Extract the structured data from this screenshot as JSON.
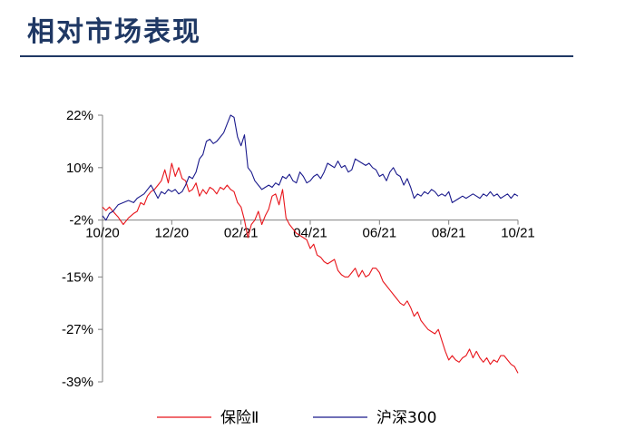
{
  "header": {
    "title": "相对市场表现"
  },
  "colors": {
    "title": "#1f3864",
    "rule": "#1f3864",
    "series_insurance": "#e8151b",
    "series_hs300": "#1a1a8c",
    "axis": "#808080"
  },
  "chart_data": {
    "type": "line",
    "title": "",
    "xlabel": "",
    "ylabel": "",
    "x_ticks": [
      "10/20",
      "12/20",
      "02/21",
      "04/21",
      "06/21",
      "08/21",
      "10/21"
    ],
    "y_ticks": [
      "22%",
      "10%",
      "-2%",
      "-15%",
      "-27%",
      "-39%"
    ],
    "y_tick_values": [
      22,
      10,
      -2,
      -15,
      -27,
      -39
    ],
    "ylim": [
      -39,
      22
    ],
    "xlim": [
      0,
      12
    ],
    "grid": false,
    "legend_position": "bottom",
    "series": [
      {
        "name": "保险Ⅱ",
        "color": "#e8151b",
        "x": [
          0,
          0.1,
          0.2,
          0.3,
          0.45,
          0.6,
          0.75,
          0.9,
          1.0,
          1.1,
          1.2,
          1.3,
          1.4,
          1.5,
          1.6,
          1.7,
          1.8,
          1.9,
          2.0,
          2.1,
          2.2,
          2.3,
          2.4,
          2.5,
          2.6,
          2.7,
          2.8,
          2.9,
          3.0,
          3.1,
          3.2,
          3.3,
          3.4,
          3.5,
          3.6,
          3.7,
          3.8,
          3.9,
          4.0,
          4.1,
          4.2,
          4.3,
          4.4,
          4.5,
          4.6,
          4.7,
          4.8,
          4.9,
          5.0,
          5.1,
          5.2,
          5.3,
          5.4,
          5.5,
          5.6,
          5.7,
          5.8,
          5.9,
          6.0,
          6.1,
          6.2,
          6.3,
          6.4,
          6.5,
          6.6,
          6.7,
          6.8,
          6.9,
          7.0,
          7.1,
          7.2,
          7.3,
          7.4,
          7.5,
          7.6,
          7.7,
          7.8,
          7.9,
          8.0,
          8.1,
          8.2,
          8.3,
          8.4,
          8.5,
          8.6,
          8.7,
          8.8,
          8.9,
          9.0,
          9.1,
          9.2,
          9.3,
          9.4,
          9.5,
          9.6,
          9.7,
          9.8,
          9.9,
          10.0,
          10.1,
          10.2,
          10.3,
          10.4,
          10.5,
          10.6,
          10.7,
          10.8,
          10.9,
          11.0,
          11.1,
          11.2,
          11.3,
          11.4,
          11.5,
          11.6,
          11.7,
          11.8,
          11.9,
          12.0
        ],
        "values": [
          1.0,
          0.2,
          1.0,
          0.0,
          -1.3,
          -3.0,
          -1.5,
          -0.5,
          0.0,
          2.0,
          1.5,
          3.5,
          4.5,
          5.0,
          6.0,
          7.0,
          9.5,
          6.5,
          11.0,
          8.0,
          10.0,
          7.5,
          7.0,
          4.5,
          5.0,
          6.5,
          3.5,
          5.0,
          4.0,
          5.5,
          5.0,
          4.0,
          5.5,
          5.0,
          6.0,
          5.0,
          4.5,
          2.0,
          1.0,
          -2.0,
          -6.0,
          -3.0,
          -2.0,
          0.0,
          -3.0,
          -1.0,
          0.5,
          3.5,
          4.0,
          1.5,
          5.0,
          -1.5,
          -3.0,
          -4.0,
          -5.0,
          -5.5,
          -6.0,
          -6.5,
          -8.5,
          -7.5,
          -10.0,
          -10.5,
          -11.5,
          -12.0,
          -11.5,
          -11.0,
          -13.5,
          -14.5,
          -15.0,
          -15.0,
          -14.0,
          -13.0,
          -15.0,
          -13.5,
          -15.0,
          -14.5,
          -13.0,
          -13.0,
          -14.0,
          -16.0,
          -17.0,
          -18.0,
          -19.0,
          -20.0,
          -21.0,
          -21.5,
          -20.5,
          -22.0,
          -24.0,
          -23.0,
          -25.0,
          -26.0,
          -27.0,
          -27.5,
          -28.0,
          -27.0,
          -29.5,
          -32.0,
          -34.0,
          -33.0,
          -34.0,
          -34.5,
          -33.5,
          -33.0,
          -31.5,
          -33.5,
          -32.0,
          -33.5,
          -34.5,
          -33.5,
          -35.0,
          -34.0,
          -34.5,
          -33.0,
          -33.0,
          -34.0,
          -35.0,
          -35.5,
          -37.0
        ]
      },
      {
        "name": "沪深300",
        "color": "#1a1a8c",
        "x": [
          0,
          0.1,
          0.2,
          0.3,
          0.45,
          0.6,
          0.75,
          0.9,
          1.0,
          1.1,
          1.2,
          1.3,
          1.4,
          1.5,
          1.6,
          1.7,
          1.8,
          1.9,
          2.0,
          2.1,
          2.2,
          2.3,
          2.4,
          2.5,
          2.6,
          2.7,
          2.8,
          2.9,
          3.0,
          3.1,
          3.2,
          3.3,
          3.4,
          3.5,
          3.6,
          3.7,
          3.8,
          3.9,
          4.0,
          4.1,
          4.2,
          4.3,
          4.4,
          4.5,
          4.6,
          4.7,
          4.8,
          4.9,
          5.0,
          5.1,
          5.2,
          5.3,
          5.4,
          5.5,
          5.6,
          5.7,
          5.8,
          5.9,
          6.0,
          6.1,
          6.2,
          6.3,
          6.4,
          6.5,
          6.6,
          6.7,
          6.8,
          6.9,
          7.0,
          7.1,
          7.2,
          7.3,
          7.4,
          7.5,
          7.6,
          7.7,
          7.8,
          7.9,
          8.0,
          8.1,
          8.2,
          8.3,
          8.4,
          8.5,
          8.6,
          8.7,
          8.8,
          8.9,
          9.0,
          9.1,
          9.2,
          9.3,
          9.4,
          9.5,
          9.6,
          9.7,
          9.8,
          9.9,
          10.0,
          10.1,
          10.2,
          10.3,
          10.4,
          10.5,
          10.6,
          10.7,
          10.8,
          10.9,
          11.0,
          11.1,
          11.2,
          11.3,
          11.4,
          11.5,
          11.6,
          11.7,
          11.8,
          11.9,
          12.0
        ],
        "values": [
          -1.0,
          -2.0,
          -0.5,
          0.0,
          1.5,
          2.0,
          2.5,
          2.0,
          3.0,
          3.5,
          4.0,
          5.0,
          6.0,
          4.5,
          3.0,
          4.5,
          4.0,
          5.0,
          4.5,
          5.0,
          4.0,
          4.5,
          6.0,
          8.0,
          7.5,
          9.0,
          12.0,
          13.0,
          16.0,
          16.5,
          15.5,
          16.0,
          17.0,
          18.0,
          20.0,
          22.0,
          21.5,
          17.0,
          15.0,
          17.5,
          10.0,
          9.0,
          7.0,
          6.0,
          5.0,
          5.5,
          6.0,
          5.5,
          6.5,
          6.0,
          8.0,
          7.5,
          8.5,
          7.0,
          6.5,
          9.0,
          8.0,
          6.5,
          7.0,
          8.0,
          8.5,
          7.5,
          9.0,
          11.0,
          10.5,
          10.0,
          11.5,
          10.0,
          10.5,
          9.0,
          9.5,
          12.0,
          11.5,
          11.0,
          10.5,
          11.0,
          10.0,
          9.5,
          8.0,
          8.5,
          7.0,
          9.0,
          10.0,
          8.5,
          8.0,
          6.0,
          7.5,
          5.5,
          3.0,
          4.0,
          3.5,
          4.5,
          4.0,
          5.0,
          4.5,
          3.5,
          4.0,
          3.5,
          4.5,
          2.0,
          2.5,
          3.0,
          3.5,
          3.0,
          3.5,
          4.0,
          3.5,
          3.0,
          4.0,
          3.5,
          4.5,
          3.5,
          4.0,
          3.0,
          3.5,
          4.0,
          3.0,
          4.0,
          3.5
        ]
      }
    ]
  }
}
